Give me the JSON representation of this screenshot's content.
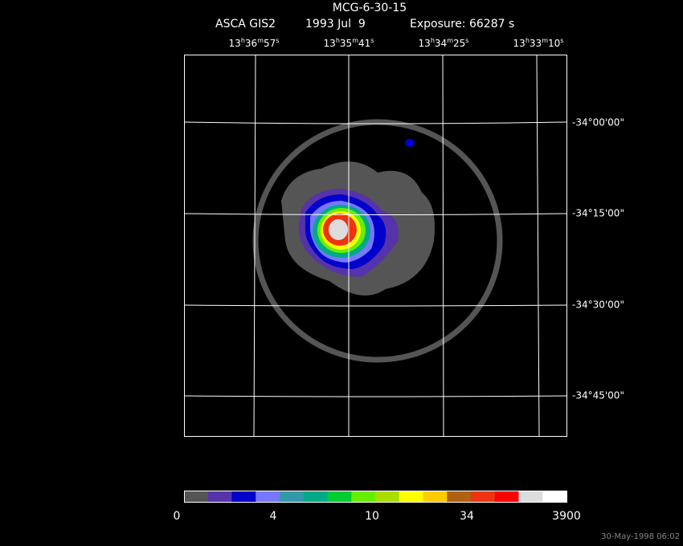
{
  "header": {
    "title": "MCG-6-30-15",
    "instrument": "ASCA GIS2",
    "date": "1993 Jul  9",
    "exposure": "Exposure: 66287 s"
  },
  "ra_labels": [
    [
      "13",
      "h",
      "36",
      "m",
      "57",
      "s"
    ],
    [
      "13",
      "h",
      "35",
      "m",
      "41",
      "s"
    ],
    [
      "13",
      "h",
      "34",
      "m",
      "25",
      "s"
    ],
    [
      "13",
      "h",
      "33",
      "m",
      "10",
      "s"
    ]
  ],
  "dec_labels": [
    "-34°00'00\"",
    "-34°15'00\"",
    "-34°30'00\"",
    "-34°45'00\""
  ],
  "colorbar": {
    "colors": [
      "#555555",
      "#5533aa",
      "#0000cc",
      "#7777ff",
      "#3399aa",
      "#00aa88",
      "#00cc33",
      "#66ee00",
      "#aadd00",
      "#ffff00",
      "#ffcc00",
      "#b06010",
      "#ee3311",
      "#ff0000",
      "#dddddd",
      "#ffffff"
    ],
    "labels": [
      "0",
      "4",
      "10",
      "34",
      "3900"
    ]
  },
  "timestamp": "30-May-1998 06:02"
}
